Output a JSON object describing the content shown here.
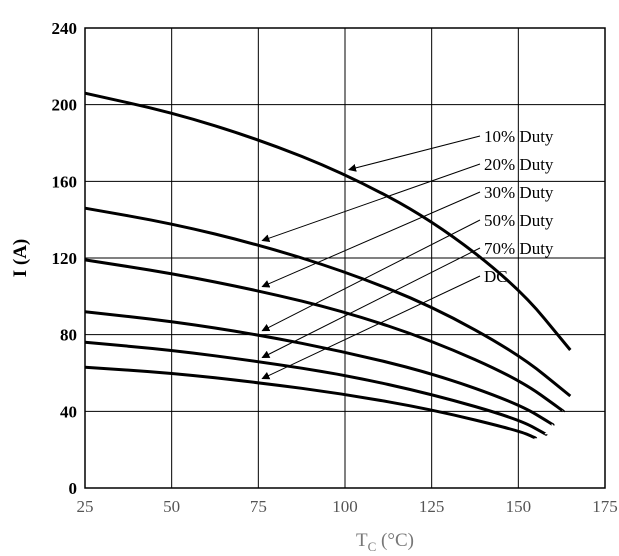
{
  "chart_data": {
    "type": "line",
    "title": "",
    "xlabel_main": "T",
    "xlabel_sub": "C",
    "xlabel_unit": " (°C)",
    "ylabel": "I (A)",
    "xlim": [
      25,
      175
    ],
    "ylim": [
      0,
      240
    ],
    "x_ticks": [
      "25",
      "50",
      "75",
      "100",
      "125",
      "150",
      "175"
    ],
    "y_ticks": [
      "0",
      "40",
      "80",
      "120",
      "160",
      "200",
      "240"
    ],
    "grid": true,
    "legend_placement": "right, with arrows to curves",
    "series": [
      {
        "name": "10% Duty",
        "x": [
          25,
          50,
          75,
          100,
          125,
          150,
          165
        ],
        "values": [
          206,
          196,
          182,
          164,
          140,
          105,
          72
        ]
      },
      {
        "name": "20% Duty",
        "x": [
          25,
          50,
          75,
          100,
          125,
          150,
          165
        ],
        "values": [
          146,
          138,
          127,
          113,
          95,
          70,
          48
        ]
      },
      {
        "name": "30% Duty",
        "x": [
          25,
          50,
          75,
          100,
          125,
          150,
          163
        ],
        "values": [
          119,
          112,
          103,
          92,
          77,
          57,
          40
        ]
      },
      {
        "name": "50% Duty",
        "x": [
          25,
          50,
          75,
          100,
          125,
          150,
          160
        ],
        "values": [
          92,
          87,
          80,
          71,
          60,
          44,
          33
        ]
      },
      {
        "name": "70% Duty",
        "x": [
          25,
          50,
          75,
          100,
          125,
          150,
          158
        ],
        "values": [
          76,
          72,
          66,
          59,
          49,
          36,
          28
        ]
      },
      {
        "name": "DC",
        "x": [
          25,
          50,
          75,
          100,
          125,
          150,
          155
        ],
        "values": [
          63,
          60,
          55,
          49,
          41,
          30,
          26
        ]
      }
    ]
  }
}
